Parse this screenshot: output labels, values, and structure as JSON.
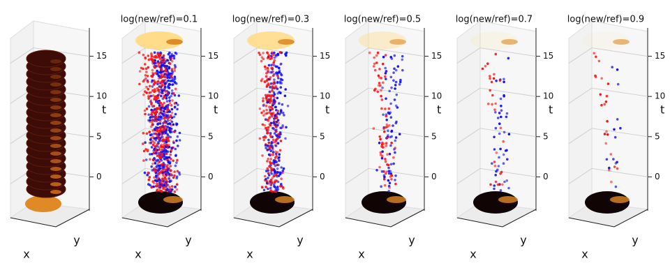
{
  "chart_data": [
    {
      "type": "scatter3d",
      "xlabel": "x",
      "ylabel": "y",
      "zlabel": "t",
      "zlim": [
        -3,
        18
      ],
      "zticks": [
        0,
        5,
        10,
        15
      ]
    },
    {
      "type": "scatter3d",
      "title": "log(new/ref)=0.1",
      "xlabel": "x",
      "ylabel": "y",
      "zlabel": "t",
      "zlim": [
        -3,
        18
      ],
      "zticks": [
        0,
        5,
        10,
        15
      ],
      "colors": [
        "#ff1010",
        "#1010ee"
      ]
    },
    {
      "type": "scatter3d",
      "title": "log(new/ref)=0.3",
      "xlabel": "x",
      "ylabel": "y",
      "zlabel": "t",
      "zlim": [
        -3,
        18
      ],
      "zticks": [
        0,
        5,
        10,
        15
      ],
      "colors": [
        "#ff1010",
        "#1010ee"
      ]
    },
    {
      "type": "scatter3d",
      "title": "log(new/ref)=0.5",
      "xlabel": "x",
      "ylabel": "y",
      "zlabel": "t",
      "zlim": [
        -3,
        18
      ],
      "zticks": [
        0,
        5,
        10,
        15
      ],
      "colors": [
        "#ff1010",
        "#1010ee"
      ]
    },
    {
      "type": "scatter3d",
      "title": "log(new/ref)=0.7",
      "xlabel": "x",
      "ylabel": "y",
      "zlabel": "t",
      "zlim": [
        -3,
        18
      ],
      "zticks": [
        0,
        5,
        10,
        15
      ],
      "colors": [
        "#ff1010",
        "#1010ee"
      ]
    },
    {
      "type": "scatter3d",
      "title": "log(new/ref)=0.9",
      "xlabel": "x",
      "ylabel": "y",
      "zlabel": "t",
      "zlim": [
        -3,
        18
      ],
      "zticks": [
        0,
        5,
        10,
        15
      ],
      "colors": [
        "#ff1010",
        "#1010ee"
      ]
    }
  ]
}
